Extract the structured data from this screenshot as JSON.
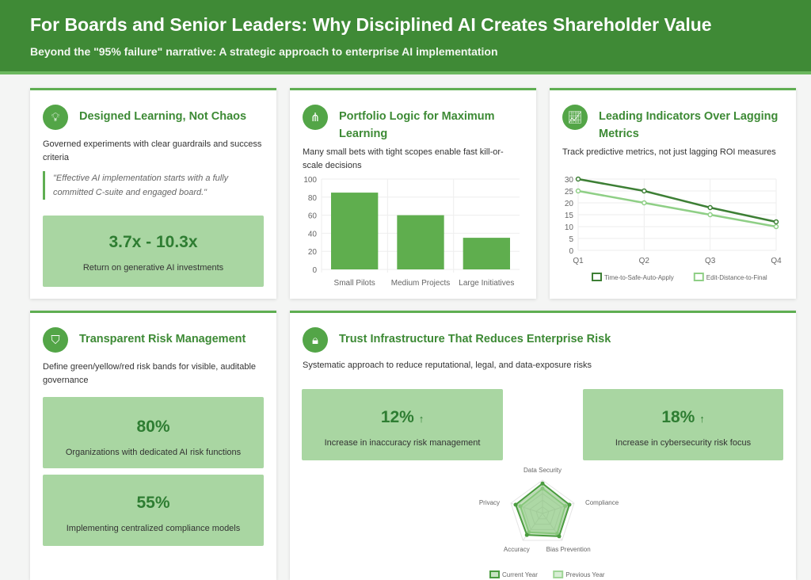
{
  "header": {
    "title": "For Boards and Senior Leaders: Why Disciplined AI Creates Shareholder Value",
    "subtitle": "Beyond the \"95% failure\" narrative: A strategic approach to enterprise AI implementation"
  },
  "cards": {
    "learning": {
      "title": "Designed Learning, Not Chaos",
      "desc": "Governed experiments with clear guardrails and success criteria",
      "quote": "\"Effective AI implementation starts with a fully committed C-suite and engaged board.\"",
      "stat_value": "3.7x - 10.3x",
      "stat_label": "Return on generative AI investments"
    },
    "portfolio": {
      "title": "Portfolio Logic for Maximum Learning",
      "desc": "Many small bets with tight scopes enable fast kill-or-scale decisions"
    },
    "indicators": {
      "title": "Leading Indicators Over Lagging Metrics",
      "desc": "Track predictive metrics, not just lagging ROI measures"
    },
    "risk": {
      "title": "Transparent Risk Management",
      "desc": "Define green/yellow/red risk bands for visible, auditable governance",
      "stats": [
        {
          "value": "80%",
          "label": "Organizations with dedicated AI risk functions"
        },
        {
          "value": "55%",
          "label": "Implementing centralized compliance models"
        }
      ]
    },
    "trust": {
      "title": "Trust Infrastructure That Reduces Enterprise Risk",
      "desc": "Systematic approach to reduce reputational, legal, and data-exposure risks",
      "stats": [
        {
          "value": "12%",
          "arrow": "↑",
          "label": "Increase in inaccuracy risk management"
        },
        {
          "value": "18%",
          "arrow": "↑",
          "label": "Increase in cybersecurity risk focus"
        }
      ]
    }
  },
  "colors": {
    "primary": "#3f8a36",
    "bar": "#5fae4e",
    "dark": "#3d7f35",
    "light": "#8fcf86"
  },
  "chart_data": [
    {
      "type": "bar",
      "categories": [
        "Small Pilots",
        "Medium Projects",
        "Large Initiatives"
      ],
      "values": [
        85,
        60,
        35
      ],
      "ylim": [
        0,
        100
      ],
      "yticks": [
        0,
        20,
        40,
        60,
        80,
        100
      ]
    },
    {
      "type": "line",
      "x": [
        "Q1",
        "Q2",
        "Q3",
        "Q4"
      ],
      "ylim": [
        0,
        30
      ],
      "yticks": [
        0,
        5,
        10,
        15,
        20,
        25,
        30
      ],
      "series": [
        {
          "name": "Time-to-Safe-Auto-Apply",
          "values": [
            30,
            25,
            18,
            12
          ]
        },
        {
          "name": "Edit-Distance-to-Final",
          "values": [
            25,
            20,
            15,
            10
          ]
        }
      ],
      "legend": "bottom"
    },
    {
      "type": "radar",
      "axes": [
        "Data Security",
        "Compliance",
        "Bias Prevention",
        "Accuracy",
        "Privacy"
      ],
      "rmax": 100,
      "series": [
        {
          "name": "Current Year",
          "values": [
            90,
            85,
            85,
            80,
            85
          ]
        },
        {
          "name": "Previous Year",
          "values": [
            75,
            72,
            75,
            70,
            70
          ]
        }
      ],
      "legend": "bottom"
    }
  ]
}
